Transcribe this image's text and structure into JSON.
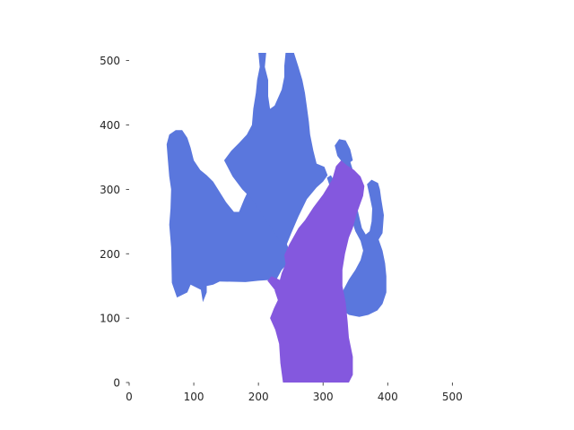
{
  "chart_data": {
    "type": "heatmap",
    "title": "",
    "xlabel": "",
    "ylabel": "",
    "image_size": [
      512,
      512
    ],
    "xlim": [
      0,
      512
    ],
    "ylim": [
      512,
      0
    ],
    "grid": false,
    "xticks": [
      0,
      100,
      200,
      300,
      400,
      500
    ],
    "yticks": [
      0,
      100,
      200,
      300,
      400,
      500
    ],
    "classes": [
      {
        "id": 0,
        "color": "#da5f55"
      },
      {
        "id": 1,
        "color": "#5a77dd"
      },
      {
        "id": 2,
        "color": "#8458de"
      }
    ],
    "regions": [
      {
        "class_id": 1,
        "polygon": [
          [
            66,
            155
          ],
          [
            74,
            132
          ],
          [
            90,
            140
          ],
          [
            95,
            152
          ],
          [
            111,
            144
          ],
          [
            114,
            125
          ],
          [
            120,
            140
          ],
          [
            120,
            150
          ],
          [
            130,
            152
          ],
          [
            140,
            157
          ],
          [
            180,
            156
          ],
          [
            200,
            158
          ],
          [
            228,
            160
          ],
          [
            236,
            175
          ],
          [
            250,
            190
          ],
          [
            246,
            210
          ],
          [
            238,
            230
          ],
          [
            225,
            250
          ],
          [
            210,
            270
          ],
          [
            196,
            290
          ],
          [
            190,
            310
          ],
          [
            178,
            285
          ],
          [
            170,
            265
          ],
          [
            162,
            265
          ],
          [
            150,
            280
          ],
          [
            140,
            296
          ],
          [
            130,
            312
          ],
          [
            120,
            322
          ],
          [
            110,
            330
          ],
          [
            100,
            345
          ],
          [
            95,
            365
          ],
          [
            90,
            380
          ],
          [
            82,
            392
          ],
          [
            72,
            392
          ],
          [
            62,
            385
          ],
          [
            58,
            370
          ],
          [
            60,
            345
          ],
          [
            62,
            320
          ],
          [
            65,
            300
          ],
          [
            64,
            270
          ],
          [
            62,
            245
          ],
          [
            65,
            210
          ]
        ]
      },
      {
        "class_id": 1,
        "polygon": [
          [
            242,
            210
          ],
          [
            250,
            230
          ],
          [
            262,
            258
          ],
          [
            275,
            285
          ],
          [
            290,
            303
          ],
          [
            300,
            312
          ],
          [
            307,
            322
          ],
          [
            302,
            335
          ],
          [
            290,
            340
          ],
          [
            285,
            360
          ],
          [
            280,
            385
          ],
          [
            278,
            405
          ],
          [
            275,
            428
          ],
          [
            272,
            450
          ],
          [
            268,
            470
          ],
          [
            262,
            490
          ],
          [
            255,
            512
          ],
          [
            242,
            512
          ],
          [
            240,
            492
          ],
          [
            240,
            475
          ],
          [
            236,
            455
          ],
          [
            225,
            430
          ],
          [
            218,
            425
          ],
          [
            215,
            445
          ],
          [
            215,
            470
          ],
          [
            210,
            490
          ],
          [
            212,
            512
          ],
          [
            200,
            512
          ],
          [
            202,
            490
          ],
          [
            198,
            470
          ],
          [
            196,
            450
          ],
          [
            192,
            425
          ],
          [
            190,
            400
          ],
          [
            182,
            385
          ],
          [
            170,
            372
          ],
          [
            158,
            360
          ],
          [
            147,
            345
          ],
          [
            160,
            320
          ],
          [
            175,
            300
          ],
          [
            190,
            285
          ],
          [
            205,
            262
          ],
          [
            220,
            240
          ],
          [
            232,
            222
          ]
        ]
      },
      {
        "class_id": 1,
        "polygon": [
          [
            326,
            115
          ],
          [
            340,
            105
          ],
          [
            356,
            102
          ],
          [
            370,
            105
          ],
          [
            384,
            112
          ],
          [
            392,
            122
          ],
          [
            398,
            140
          ],
          [
            398,
            165
          ],
          [
            396,
            185
          ],
          [
            392,
            205
          ],
          [
            386,
            222
          ],
          [
            392,
            232
          ],
          [
            394,
            260
          ],
          [
            390,
            285
          ],
          [
            388,
            300
          ],
          [
            385,
            310
          ],
          [
            375,
            315
          ],
          [
            368,
            308
          ],
          [
            372,
            290
          ],
          [
            376,
            270
          ],
          [
            375,
            250
          ],
          [
            372,
            235
          ],
          [
            366,
            230
          ],
          [
            360,
            240
          ],
          [
            355,
            262
          ],
          [
            350,
            285
          ],
          [
            348,
            305
          ],
          [
            346,
            330
          ],
          [
            340,
            350
          ],
          [
            332,
            342
          ],
          [
            330,
            315
          ],
          [
            335,
            290
          ],
          [
            340,
            270
          ],
          [
            345,
            250
          ],
          [
            350,
            235
          ],
          [
            358,
            220
          ],
          [
            362,
            205
          ],
          [
            358,
            190
          ],
          [
            350,
            175
          ],
          [
            340,
            160
          ],
          [
            332,
            145
          ],
          [
            325,
            130
          ]
        ]
      },
      {
        "class_id": 1,
        "polygon": [
          [
            316,
            288
          ],
          [
            322,
            300
          ],
          [
            318,
            312
          ],
          [
            312,
            322
          ],
          [
            306,
            318
          ],
          [
            312,
            300
          ]
        ]
      },
      {
        "class_id": 1,
        "polygon": [
          [
            336,
            338
          ],
          [
            346,
            345
          ],
          [
            342,
            362
          ],
          [
            335,
            376
          ],
          [
            325,
            378
          ],
          [
            318,
            368
          ],
          [
            322,
            352
          ],
          [
            330,
            342
          ]
        ]
      },
      {
        "class_id": 2,
        "polygon": [
          [
            238,
            0
          ],
          [
            340,
            0
          ],
          [
            346,
            12
          ],
          [
            346,
            40
          ],
          [
            340,
            70
          ],
          [
            338,
            95
          ],
          [
            335,
            125
          ],
          [
            330,
            150
          ],
          [
            330,
            175
          ],
          [
            334,
            200
          ],
          [
            340,
            225
          ],
          [
            346,
            240
          ],
          [
            352,
            262
          ],
          [
            362,
            290
          ],
          [
            364,
            305
          ],
          [
            358,
            320
          ],
          [
            348,
            330
          ],
          [
            336,
            338
          ],
          [
            328,
            345
          ],
          [
            320,
            336
          ],
          [
            314,
            315
          ],
          [
            300,
            292
          ],
          [
            285,
            272
          ],
          [
            272,
            252
          ],
          [
            262,
            240
          ],
          [
            248,
            215
          ],
          [
            240,
            198
          ],
          [
            242,
            184
          ],
          [
            236,
            170
          ],
          [
            232,
            155
          ],
          [
            225,
            143
          ],
          [
            230,
            128
          ],
          [
            224,
            115
          ],
          [
            218,
            100
          ],
          [
            226,
            82
          ],
          [
            232,
            60
          ],
          [
            234,
            30
          ]
        ]
      },
      {
        "class_id": 2,
        "polygon": [
          [
            240,
            120
          ],
          [
            232,
            135
          ],
          [
            222,
            148
          ],
          [
            214,
            158
          ],
          [
            220,
            165
          ],
          [
            232,
            160
          ],
          [
            244,
            150
          ]
        ]
      }
    ]
  }
}
